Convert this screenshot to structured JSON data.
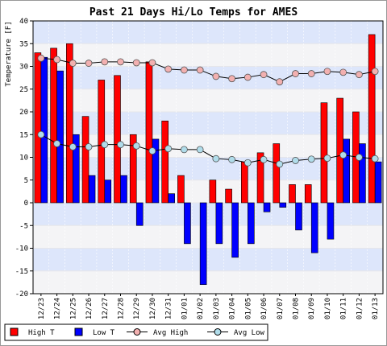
{
  "chart_data": {
    "type": "bar",
    "title": "Past 21 Days Hi/Lo Temps for AMES",
    "ylabel": "Temperature [F]",
    "xlabel": "",
    "ylim": [
      -20,
      40
    ],
    "yticks": [
      -20,
      -15,
      -10,
      -5,
      0,
      5,
      10,
      15,
      20,
      25,
      30,
      35,
      40
    ],
    "categories": [
      "12/23",
      "12/24",
      "12/25",
      "12/26",
      "12/27",
      "12/28",
      "12/29",
      "12/30",
      "12/31",
      "01/01",
      "01/02",
      "01/03",
      "01/04",
      "01/05",
      "01/06",
      "01/07",
      "01/08",
      "01/09",
      "01/10",
      "01/11",
      "01/12",
      "01/13"
    ],
    "series": [
      {
        "name": "High T",
        "type": "bar",
        "color": "#ff0000",
        "values": [
          33,
          34,
          35,
          19,
          27,
          28,
          15,
          31,
          18,
          6,
          0,
          5,
          3,
          9,
          11,
          13,
          4,
          4,
          22,
          23,
          20,
          37
        ]
      },
      {
        "name": "Low T",
        "type": "bar",
        "color": "#0000ff",
        "values": [
          32,
          29,
          15,
          6,
          5,
          6,
          -5,
          14,
          2,
          -9,
          -18,
          -9,
          -12,
          -9,
          -2,
          -1,
          -6,
          -11,
          -8,
          14,
          13,
          9
        ]
      },
      {
        "name": "Avg High",
        "type": "line",
        "color": "#000000",
        "marker": "#f2b0b0",
        "values": [
          31.8,
          31.5,
          30.7,
          30.7,
          31.0,
          31.0,
          30.8,
          30.8,
          29.4,
          29.2,
          29.2,
          27.8,
          27.3,
          27.6,
          28.2,
          26.6,
          28.4,
          28.4,
          28.9,
          28.7,
          28.2,
          28.9
        ]
      },
      {
        "name": "Avg Low",
        "type": "line",
        "color": "#000000",
        "marker": "#b0dcea",
        "values": [
          15.0,
          13.0,
          12.3,
          12.3,
          12.8,
          12.8,
          12.5,
          11.4,
          11.9,
          11.7,
          11.7,
          9.7,
          9.5,
          8.8,
          9.5,
          8.5,
          9.3,
          9.6,
          9.8,
          10.5,
          10.0,
          9.7
        ]
      }
    ],
    "grid": true,
    "legend_position": "bottom-left"
  },
  "colors": {
    "band_light": "#f4f4f6",
    "band_blue": "#dde6fb",
    "grid_line": "#ffffff",
    "frame": "#000000"
  }
}
